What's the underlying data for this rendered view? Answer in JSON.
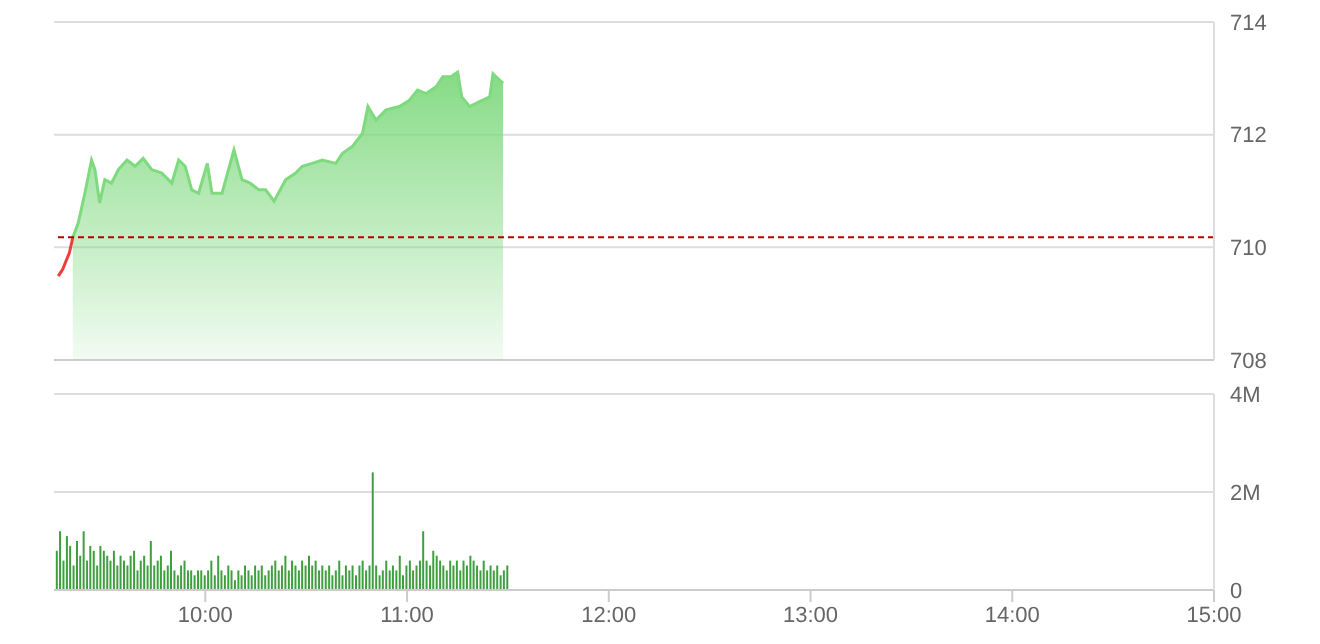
{
  "chart_data": [
    {
      "type": "area",
      "x": [
        9.271,
        9.293,
        9.326,
        9.343,
        9.37,
        9.403,
        9.436,
        9.453,
        9.476,
        9.502,
        9.535,
        9.569,
        9.612,
        9.652,
        9.692,
        9.734,
        9.784,
        9.834,
        9.868,
        9.9,
        9.933,
        9.967,
        10.01,
        10.033,
        10.083,
        10.142,
        10.182,
        10.222,
        10.266,
        10.299,
        10.341,
        10.398,
        10.448,
        10.481,
        10.53,
        10.58,
        10.647,
        10.68,
        10.729,
        10.779,
        10.806,
        10.846,
        10.896,
        10.962,
        11.012,
        11.052,
        11.095,
        11.144,
        11.177,
        11.217,
        11.251,
        11.271,
        11.31,
        11.362,
        11.41,
        11.426,
        11.476
      ],
      "series": [
        {
          "color": "#7fd97f",
          "values": [
            null,
            null,
            null,
            710.17,
            710.43,
            710.96,
            711.55,
            711.38,
            710.79,
            711.2,
            711.14,
            711.38,
            711.55,
            711.44,
            711.58,
            711.38,
            711.32,
            711.14,
            711.55,
            711.44,
            711.02,
            710.96,
            711.49,
            710.96,
            710.96,
            711.73,
            711.2,
            711.14,
            711.02,
            711.02,
            710.82,
            711.2,
            711.32,
            711.44,
            711.49,
            711.55,
            711.49,
            711.67,
            711.79,
            712.02,
            712.5,
            712.26,
            712.44,
            712.5,
            712.61,
            712.79,
            712.73,
            712.85,
            713.03,
            713.03,
            713.11,
            712.67,
            712.5,
            712.59,
            712.67,
            713.08,
            712.91
          ]
        },
        {
          "type": "line",
          "color": "#f03c3c",
          "values": [
            709.49,
            709.61,
            709.9,
            710.17,
            null,
            null,
            null,
            null,
            null,
            null,
            null,
            null,
            null,
            null,
            null,
            null,
            null,
            null,
            null,
            null,
            null,
            null,
            null,
            null,
            null,
            null,
            null,
            null,
            null,
            null,
            null,
            null,
            null,
            null,
            null,
            null,
            null,
            null,
            null,
            null,
            null,
            null,
            null,
            null,
            null,
            null,
            null,
            null,
            null,
            null,
            null,
            null,
            null,
            null,
            null,
            null,
            null
          ]
        }
      ],
      "xlim": [
        9.25,
        15
      ],
      "ylim": [
        708,
        714
      ],
      "yticks": [
        708,
        710,
        712,
        714
      ],
      "grid": "y",
      "tick_labels": "y",
      "ref_lines": [
        {
          "axis": "y",
          "value": 710.18,
          "color": "#b40000",
          "line_style": "dashed"
        }
      ]
    },
    {
      "type": "bar",
      "x": [
        9.267,
        9.283,
        9.3,
        9.317,
        9.333,
        9.35,
        9.367,
        9.383,
        9.4,
        9.417,
        9.433,
        9.45,
        9.467,
        9.483,
        9.5,
        9.517,
        9.533,
        9.55,
        9.567,
        9.583,
        9.6,
        9.617,
        9.633,
        9.65,
        9.667,
        9.683,
        9.7,
        9.717,
        9.733,
        9.75,
        9.767,
        9.783,
        9.8,
        9.817,
        9.833,
        9.85,
        9.867,
        9.883,
        9.9,
        9.917,
        9.933,
        9.95,
        9.967,
        9.983,
        10,
        10.017,
        10.033,
        10.05,
        10.067,
        10.083,
        10.1,
        10.117,
        10.133,
        10.15,
        10.167,
        10.183,
        10.2,
        10.217,
        10.233,
        10.25,
        10.267,
        10.283,
        10.3,
        10.317,
        10.333,
        10.35,
        10.367,
        10.383,
        10.4,
        10.417,
        10.433,
        10.45,
        10.467,
        10.483,
        10.5,
        10.517,
        10.533,
        10.55,
        10.567,
        10.583,
        10.6,
        10.617,
        10.633,
        10.65,
        10.667,
        10.683,
        10.7,
        10.717,
        10.733,
        10.75,
        10.767,
        10.783,
        10.8,
        10.817,
        10.833,
        10.85,
        10.867,
        10.883,
        10.9,
        10.917,
        10.933,
        10.95,
        10.967,
        10.983,
        11,
        11.017,
        11.033,
        11.05,
        11.067,
        11.083,
        11.1,
        11.117,
        11.133,
        11.15,
        11.167,
        11.183,
        11.2,
        11.217,
        11.233,
        11.25,
        11.267,
        11.283,
        11.3,
        11.317,
        11.333,
        11.35,
        11.367,
        11.383,
        11.4,
        11.417,
        11.433,
        11.45,
        11.467,
        11.483,
        11.5
      ],
      "values": [
        0.8,
        1.2,
        0.6,
        1.1,
        0.9,
        0.5,
        1.0,
        0.7,
        1.2,
        0.6,
        0.9,
        0.8,
        0.5,
        0.9,
        0.8,
        0.7,
        0.6,
        0.8,
        0.5,
        0.7,
        0.6,
        0.5,
        0.7,
        0.8,
        0.4,
        0.6,
        0.7,
        0.5,
        1.0,
        0.5,
        0.6,
        0.7,
        0.4,
        0.5,
        0.8,
        0.4,
        0.3,
        0.5,
        0.6,
        0.4,
        0.4,
        0.3,
        0.4,
        0.4,
        0.3,
        0.4,
        0.6,
        0.3,
        0.7,
        0.4,
        0.3,
        0.5,
        0.4,
        0.2,
        0.4,
        0.3,
        0.5,
        0.4,
        0.3,
        0.5,
        0.4,
        0.5,
        0.3,
        0.4,
        0.5,
        0.6,
        0.4,
        0.5,
        0.7,
        0.4,
        0.6,
        0.5,
        0.4,
        0.6,
        0.5,
        0.7,
        0.5,
        0.6,
        0.4,
        0.5,
        0.4,
        0.5,
        0.3,
        0.4,
        0.6,
        0.3,
        0.5,
        0.4,
        0.5,
        0.3,
        0.5,
        0.6,
        0.4,
        0.5,
        2.4,
        0.5,
        0.3,
        0.4,
        0.6,
        0.4,
        0.5,
        0.4,
        0.7,
        0.3,
        0.5,
        0.6,
        0.4,
        0.5,
        0.6,
        1.2,
        0.6,
        0.5,
        0.8,
        0.7,
        0.6,
        0.5,
        0.4,
        0.6,
        0.5,
        0.6,
        0.4,
        0.6,
        0.5,
        0.7,
        0.6,
        0.5,
        0.4,
        0.6,
        0.4,
        0.5,
        0.4,
        0.5,
        0.3,
        0.4,
        0.5
      ],
      "color": "#3f9f3f",
      "xlim": [
        9.25,
        15
      ],
      "xticks": [
        {
          "value": 10,
          "label": "10:00"
        },
        {
          "value": 11,
          "label": "11:00"
        },
        {
          "value": 12,
          "label": "12:00"
        },
        {
          "value": 13,
          "label": "13:00"
        },
        {
          "value": 14,
          "label": "14:00"
        },
        {
          "value": 15,
          "label": "15:00"
        }
      ],
      "ylim": [
        0,
        4
      ],
      "yticks": [
        {
          "value": 0,
          "label": "0"
        },
        {
          "value": 2,
          "label": "2M"
        },
        {
          "value": 4,
          "label": "4M"
        }
      ],
      "grid": "y"
    }
  ]
}
